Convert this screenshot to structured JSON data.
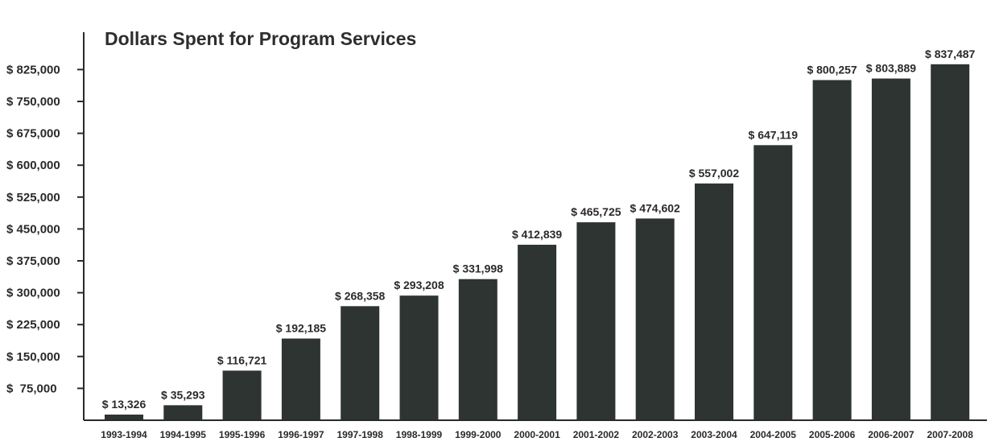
{
  "chart_data": {
    "type": "bar",
    "title": "Dollars Spent for Program Services",
    "xlabel": "",
    "ylabel": "",
    "categories": [
      "1993-1994",
      "1994-1995",
      "1995-1996",
      "1996-1997",
      "1997-1998",
      "1998-1999",
      "1999-2000",
      "2000-2001",
      "2001-2002",
      "2002-2003",
      "2003-2004",
      "2004-2005",
      "2005-2006",
      "2006-2007",
      "2007-2008"
    ],
    "values": [
      13326,
      35293,
      116721,
      192185,
      268358,
      293208,
      331998,
      412839,
      465725,
      474602,
      557002,
      647119,
      800257,
      803889,
      837487
    ],
    "value_labels": [
      "$ 13,326",
      "$ 35,293",
      "$ 116,721",
      "$ 192,185",
      "$ 268,358",
      "$ 293,208",
      "$ 331,998",
      "$ 412,839",
      "$ 465,725",
      "$ 474,602",
      "$ 557,002",
      "$ 647,119",
      "$ 800,257",
      "$ 803,889",
      "$ 837,487"
    ],
    "yticks": [
      75000,
      150000,
      225000,
      300000,
      375000,
      450000,
      525000,
      600000,
      675000,
      750000,
      825000
    ],
    "ytick_labels": [
      "$  75,000",
      "$ 150,000",
      "$ 225,000",
      "$ 300,000",
      "$ 375,000",
      "$ 450,000",
      "$ 525,000",
      "$ 600,000",
      "$ 675,000",
      "$ 750,000",
      "$ 825,000"
    ],
    "ylim": [
      0,
      825000
    ],
    "grid": false,
    "colors": {
      "bar": "#2d3432",
      "axis": "#2a2a2a",
      "text": "#2a2a2a"
    }
  }
}
